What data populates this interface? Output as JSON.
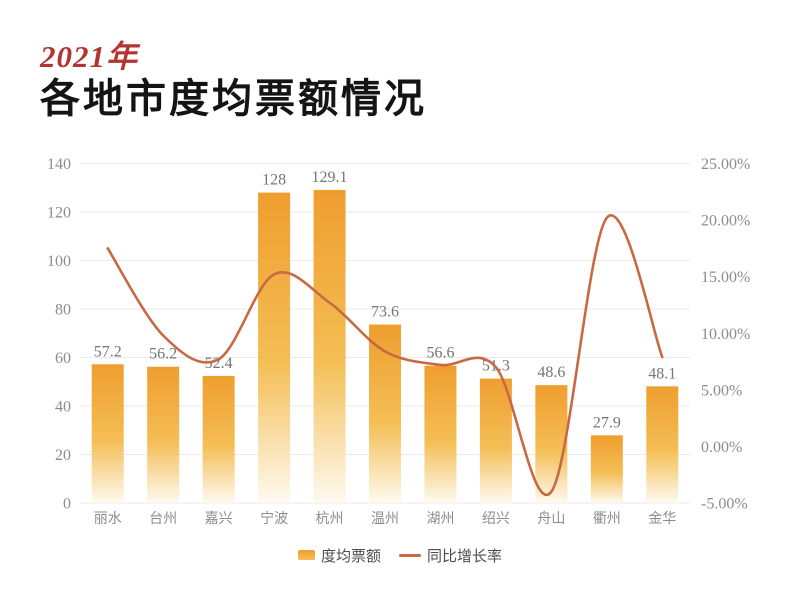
{
  "header": {
    "year_label": "2021年",
    "title": "各地市度均票额情况",
    "accent_color": "#b2362f"
  },
  "chart_data": {
    "type": "bar",
    "subtype": "bar+line dual axis",
    "categories": [
      "丽水",
      "台州",
      "嘉兴",
      "宁波",
      "杭州",
      "温州",
      "湖州",
      "绍兴",
      "舟山",
      "衢州",
      "金华"
    ],
    "series": [
      {
        "name": "度均票额",
        "type": "bar",
        "axis": "left",
        "values": [
          57.2,
          56.2,
          52.4,
          128,
          129.1,
          73.6,
          56.6,
          51.3,
          48.6,
          27.9,
          48.1
        ],
        "labels": [
          "57.2",
          "56.2",
          "52.4",
          "128",
          "129.1",
          "73.6",
          "56.6",
          "51.3",
          "48.6",
          "27.9",
          "48.1"
        ]
      },
      {
        "name": "同比增长率",
        "type": "line",
        "axis": "right",
        "unit": "%",
        "values": [
          17.5,
          9.8,
          7.7,
          15.2,
          12.7,
          8.4,
          7.2,
          7.0,
          -4.0,
          20.2,
          7.9
        ]
      }
    ],
    "left_axis": {
      "min": 0,
      "max": 140,
      "step": 20,
      "ticks": [
        "0",
        "20",
        "40",
        "60",
        "80",
        "100",
        "120",
        "140"
      ]
    },
    "right_axis": {
      "min": -5,
      "max": 25,
      "step": 5,
      "ticks": [
        "-5.00%",
        "0.00%",
        "5.00%",
        "10.00%",
        "15.00%",
        "20.00%",
        "25.00%"
      ]
    },
    "grid": true,
    "legend_position": "bottom",
    "colors": {
      "bar_top": "#ef9e2f",
      "bar_mid": "#f4be55",
      "bar_bottom": "#fefaf0",
      "line": "#c76a42",
      "grid": "#eaeaea",
      "axis_text": "#8c8c8c",
      "value_label": "#757575",
      "category_label": "#8c8c8c"
    }
  },
  "legend": {
    "items": [
      {
        "label": "度均票额",
        "type": "bar"
      },
      {
        "label": "同比增长率",
        "type": "line"
      }
    ]
  }
}
